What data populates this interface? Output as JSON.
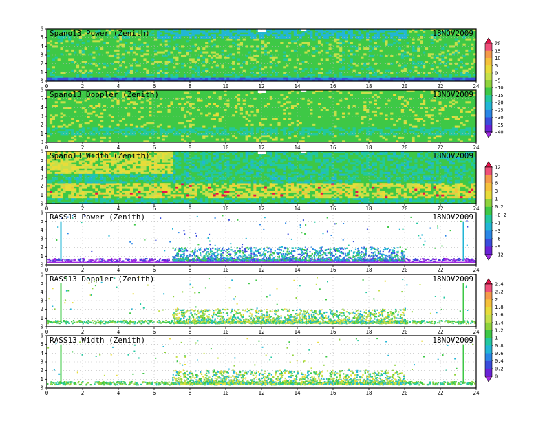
{
  "chart_data": [
    {
      "type": "heatmap",
      "title": "Spano13 Power (Zenith)",
      "date": "18NOV2009",
      "x_ticks": [
        0,
        2,
        4,
        6,
        8,
        10,
        12,
        14,
        16,
        18,
        20,
        22,
        24
      ],
      "y_ticks": [
        0,
        1,
        2,
        3,
        4,
        5,
        6
      ],
      "xlim": [
        0,
        24
      ],
      "ylim": [
        0,
        6
      ],
      "colorbar": "scale_a",
      "coverage": "full",
      "grid": true
    },
    {
      "type": "heatmap",
      "title": "Spano13 Doppler (Zenith)",
      "date": "18NOV2009",
      "x_ticks": [
        0,
        2,
        4,
        6,
        8,
        10,
        12,
        14,
        16,
        18,
        20,
        22,
        24
      ],
      "y_ticks": [
        0,
        1,
        2,
        3,
        4,
        5,
        6
      ],
      "xlim": [
        0,
        24
      ],
      "ylim": [
        0,
        6
      ],
      "colorbar": "scale_a",
      "coverage": "full",
      "grid": true
    },
    {
      "type": "heatmap",
      "title": "Spano13 Width (Zenith)",
      "date": "18NOV2009",
      "x_ticks": [
        0,
        2,
        4,
        6,
        8,
        10,
        12,
        14,
        16,
        18,
        20,
        22,
        24
      ],
      "y_ticks": [
        0,
        1,
        2,
        3,
        4,
        5,
        6
      ],
      "xlim": [
        0,
        24
      ],
      "ylim": [
        0,
        6
      ],
      "colorbar": "scale_b",
      "coverage": "full",
      "grid": true
    },
    {
      "type": "heatmap",
      "title": "RASS13 Power (Zenith)",
      "date": "18NOV2009",
      "x_ticks": [
        0,
        2,
        4,
        6,
        8,
        10,
        12,
        14,
        16,
        18,
        20,
        22,
        24
      ],
      "y_ticks": [
        0,
        1,
        2,
        3,
        4,
        5,
        6
      ],
      "xlim": [
        0,
        24
      ],
      "ylim": [
        0,
        6
      ],
      "colorbar": "scale_b",
      "coverage": "sparse",
      "grid": true
    },
    {
      "type": "heatmap",
      "title": "RASS13 Doppler (Zenith)",
      "date": "18NOV2009",
      "x_ticks": [
        0,
        2,
        4,
        6,
        8,
        10,
        12,
        14,
        16,
        18,
        20,
        22,
        24
      ],
      "y_ticks": [
        0,
        1,
        2,
        3,
        4,
        5,
        6
      ],
      "xlim": [
        0,
        24
      ],
      "ylim": [
        0,
        6
      ],
      "colorbar": "scale_c",
      "coverage": "sparse",
      "grid": true
    },
    {
      "type": "heatmap",
      "title": "RASS13 Width (Zenith)",
      "date": "18NOV2009",
      "x_ticks": [
        0,
        2,
        4,
        6,
        8,
        10,
        12,
        14,
        16,
        18,
        20,
        22,
        24
      ],
      "y_ticks": [
        0,
        1,
        2,
        3,
        4,
        5,
        6
      ],
      "xlim": [
        0,
        24
      ],
      "ylim": [
        0,
        6
      ],
      "colorbar": "scale_c",
      "coverage": "sparse",
      "grid": true
    }
  ],
  "colorbars": {
    "scale_a": {
      "labels": [
        "20",
        "15",
        "10",
        "5",
        "0",
        "-5",
        "-10",
        "-15",
        "-20",
        "-25",
        "-30",
        "-35",
        "-40"
      ],
      "colors": [
        "#e8114a",
        "#f0507a",
        "#f59a4a",
        "#f5c13b",
        "#e8dc3a",
        "#c6e04a",
        "#8fd33c",
        "#3ec846",
        "#22c8a0",
        "#22b6d6",
        "#2a86e6",
        "#3a4cdc",
        "#6a22d6",
        "#a02ae0"
      ]
    },
    "scale_b": {
      "labels": [
        "12",
        "9",
        "6",
        "3",
        "1",
        "0.2",
        "-0.2",
        "-1",
        "-3",
        "-6",
        "-9",
        "-12"
      ],
      "colors": [
        "#e8114a",
        "#f0507a",
        "#f59a4a",
        "#f5c13b",
        "#e8dc3a",
        "#8fd33c",
        "#3ec846",
        "#22c8a0",
        "#22b6d6",
        "#2a86e6",
        "#3a4cdc",
        "#6a22d6",
        "#a02ae0"
      ]
    },
    "scale_c": {
      "labels": [
        "2.4",
        "2.2",
        "2",
        "1.8",
        "1.6",
        "1.4",
        "1.2",
        "1",
        "0.8",
        "0.6",
        "0.4",
        "0.2",
        "0"
      ],
      "colors": [
        "#e8114a",
        "#f0507a",
        "#f59a4a",
        "#f5c13b",
        "#e8dc3a",
        "#c6e04a",
        "#8fd33c",
        "#3ec846",
        "#22c8a0",
        "#22b6d6",
        "#2a86e6",
        "#3a4cdc",
        "#6a22d6",
        "#a02ae0"
      ]
    }
  }
}
